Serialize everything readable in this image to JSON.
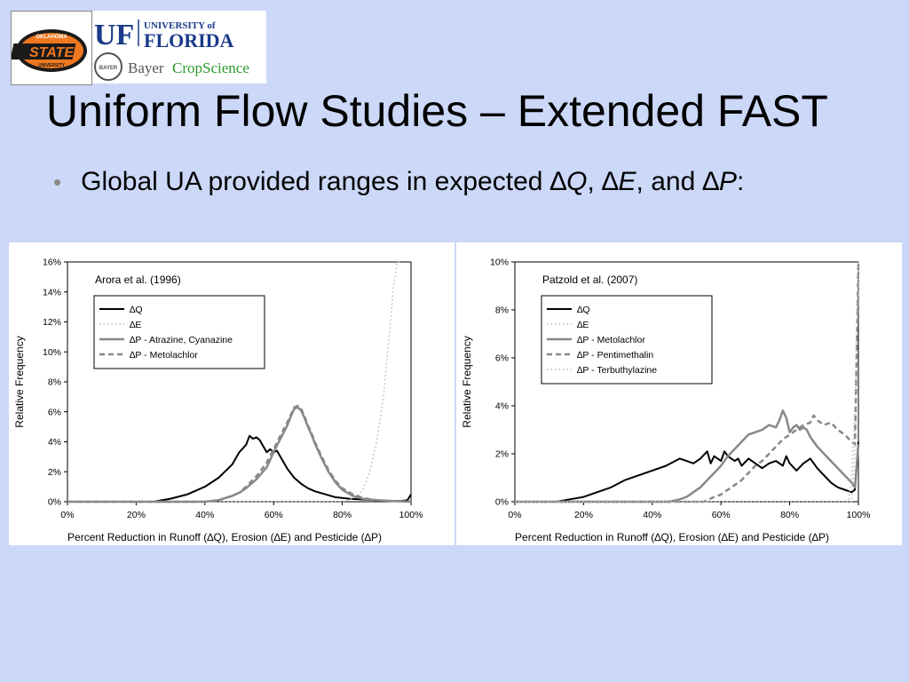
{
  "title": "Uniform Flow Studies – Extended FAST",
  "bullet": {
    "text_before": "Global UA provided ranges in expected ",
    "delta": "∆",
    "var1": "Q",
    "sep1": ", ",
    "var2": "E",
    "sep2": ", and ",
    "var3": "P",
    "end": ":"
  },
  "logos": {
    "osu_top": "OKLAHOMA",
    "osu_main": "STATE",
    "osu_bottom": "UNIVERSITY",
    "uf_mark": "UF",
    "uf_university": "UNIVERSITY of",
    "uf_florida": "FLORIDA",
    "bayer_cross": "BAYER",
    "bayer_name": "Bayer",
    "bayer_crop": "CropScience"
  },
  "colors": {
    "background": "#ccd8f8",
    "uf_blue": "#1a3a8a",
    "bayer_green": "#2a9a2a",
    "osu_orange": "#f07820"
  },
  "chart_data": [
    {
      "type": "line",
      "annotation": "Arora et al. (1996)",
      "xlabel": "Percent Reduction in Runoff (∆Q), Erosion (∆E) and Pesticide (∆P)",
      "ylabel": "Relative Frequency",
      "xlim": [
        0,
        100
      ],
      "ylim": [
        0,
        16
      ],
      "x_ticks": [
        "0%",
        "20%",
        "40%",
        "60%",
        "80%",
        "100%"
      ],
      "y_ticks": [
        "0%",
        "2%",
        "4%",
        "6%",
        "8%",
        "10%",
        "12%",
        "14%",
        "16%"
      ],
      "legend_position": "top-left",
      "series": [
        {
          "name": "∆Q",
          "style": "solid-black",
          "x": [
            0,
            25,
            30,
            35,
            40,
            44,
            48,
            50,
            52,
            53,
            54,
            55,
            56,
            57,
            58,
            59,
            60,
            61,
            62,
            63,
            64,
            66,
            68,
            70,
            72,
            75,
            78,
            82,
            86,
            90,
            94,
            97,
            99,
            100
          ],
          "y": [
            0,
            0,
            0.2,
            0.5,
            1.0,
            1.6,
            2.5,
            3.3,
            3.8,
            4.4,
            4.2,
            4.3,
            4.1,
            3.7,
            3.3,
            3.5,
            3.3,
            3.4,
            3.0,
            2.6,
            2.2,
            1.6,
            1.2,
            0.9,
            0.7,
            0.5,
            0.3,
            0.2,
            0.15,
            0.1,
            0.05,
            0.05,
            0.1,
            0.5
          ]
        },
        {
          "name": "∆E",
          "style": "dotted-light",
          "x": [
            0,
            80,
            84,
            86,
            88,
            90,
            92,
            93,
            94,
            95,
            96,
            97
          ],
          "y": [
            0,
            0,
            0.3,
            0.8,
            2.0,
            4.0,
            7.0,
            9.5,
            12.0,
            14.5,
            16.0,
            16.0
          ]
        },
        {
          "name": "∆P - Atrazine, Cyanazine",
          "style": "solid-gray",
          "x": [
            0,
            40,
            44,
            48,
            50,
            52,
            55,
            58,
            60,
            62,
            64,
            65,
            66,
            67,
            68,
            69,
            70,
            71,
            72,
            74,
            76,
            78,
            80,
            83,
            86,
            90,
            95,
            100
          ],
          "y": [
            0,
            0,
            0.1,
            0.4,
            0.6,
            0.9,
            1.5,
            2.3,
            3.3,
            4.2,
            5.1,
            5.7,
            6.2,
            6.3,
            6.1,
            5.6,
            5.0,
            4.5,
            3.9,
            2.9,
            2.0,
            1.3,
            0.8,
            0.4,
            0.2,
            0.1,
            0.05,
            0
          ]
        },
        {
          "name": "∆P - Metolachlor",
          "style": "dashed-gray",
          "x": [
            0,
            40,
            44,
            48,
            50,
            52,
            55,
            58,
            60,
            62,
            64,
            65,
            66,
            67,
            68,
            69,
            70,
            71,
            72,
            74,
            76,
            78,
            80,
            83,
            86,
            90,
            95,
            100
          ],
          "y": [
            0,
            0,
            0.1,
            0.4,
            0.6,
            1.0,
            1.7,
            2.6,
            3.5,
            4.4,
            5.3,
            5.8,
            6.3,
            6.4,
            6.2,
            5.7,
            5.1,
            4.6,
            4.0,
            3.0,
            2.1,
            1.4,
            0.9,
            0.5,
            0.25,
            0.1,
            0.05,
            0
          ]
        }
      ]
    },
    {
      "type": "line",
      "annotation": "Patzold et al. (2007)",
      "xlabel": "Percent Reduction in Runoff (∆Q), Erosion (∆E) and Pesticide (∆P)",
      "ylabel": "Relative Frequency",
      "xlim": [
        0,
        100
      ],
      "ylim": [
        0,
        10
      ],
      "x_ticks": [
        "0%",
        "20%",
        "40%",
        "60%",
        "80%",
        "100%"
      ],
      "y_ticks": [
        "0%",
        "2%",
        "4%",
        "6%",
        "8%",
        "10%"
      ],
      "legend_position": "top-left",
      "series": [
        {
          "name": "∆Q",
          "style": "solid-black",
          "x": [
            0,
            12,
            16,
            20,
            24,
            28,
            32,
            36,
            40,
            44,
            48,
            50,
            52,
            54,
            56,
            57,
            58,
            60,
            61,
            62,
            64,
            65,
            66,
            68,
            70,
            72,
            74,
            76,
            78,
            79,
            80,
            82,
            84,
            86,
            88,
            90,
            92,
            94,
            96,
            98,
            99,
            100
          ],
          "y": [
            0,
            0,
            0.1,
            0.2,
            0.4,
            0.6,
            0.9,
            1.1,
            1.3,
            1.5,
            1.8,
            1.7,
            1.6,
            1.8,
            2.1,
            1.6,
            1.9,
            1.7,
            2.1,
            1.9,
            1.7,
            1.8,
            1.5,
            1.8,
            1.6,
            1.4,
            1.6,
            1.7,
            1.5,
            1.9,
            1.6,
            1.3,
            1.6,
            1.8,
            1.4,
            1.1,
            0.8,
            0.6,
            0.5,
            0.4,
            0.5,
            2.5
          ]
        },
        {
          "name": "∆E",
          "style": "dotted-light",
          "x": [
            0,
            98,
            99,
            99.5,
            100
          ],
          "y": [
            0,
            0,
            2.0,
            6.0,
            10.0
          ]
        },
        {
          "name": "∆P - Metolachlor",
          "style": "solid-gray",
          "x": [
            0,
            45,
            48,
            50,
            52,
            54,
            56,
            58,
            60,
            62,
            64,
            66,
            68,
            70,
            72,
            74,
            76,
            77,
            78,
            79,
            80,
            81,
            82,
            83,
            84,
            85,
            86,
            88,
            90,
            92,
            94,
            96,
            98,
            99,
            100
          ],
          "y": [
            0,
            0,
            0.1,
            0.2,
            0.4,
            0.6,
            0.9,
            1.2,
            1.5,
            1.9,
            2.2,
            2.5,
            2.8,
            2.9,
            3.0,
            3.2,
            3.1,
            3.4,
            3.8,
            3.5,
            2.9,
            3.1,
            3.2,
            3.0,
            3.1,
            3.0,
            2.7,
            2.3,
            2.0,
            1.7,
            1.4,
            1.1,
            0.8,
            0.6,
            2.4
          ]
        },
        {
          "name": "∆P - Pentimethalin",
          "style": "dashed-gray",
          "x": [
            0,
            55,
            58,
            60,
            62,
            64,
            66,
            68,
            70,
            72,
            74,
            76,
            78,
            80,
            82,
            84,
            86,
            87,
            88,
            90,
            92,
            94,
            96,
            98,
            99,
            100
          ],
          "y": [
            0,
            0,
            0.2,
            0.3,
            0.5,
            0.7,
            0.9,
            1.2,
            1.5,
            1.7,
            2.0,
            2.3,
            2.6,
            2.8,
            3.0,
            3.2,
            3.3,
            3.6,
            3.4,
            3.2,
            3.3,
            3.0,
            2.8,
            2.5,
            2.4,
            10.0
          ]
        },
        {
          "name": "∆P - Terbuthylazine",
          "style": "dotted-light",
          "x": [
            0,
            97,
            98,
            99,
            100
          ],
          "y": [
            0,
            0,
            1.0,
            4.0,
            10.0
          ]
        }
      ]
    }
  ]
}
